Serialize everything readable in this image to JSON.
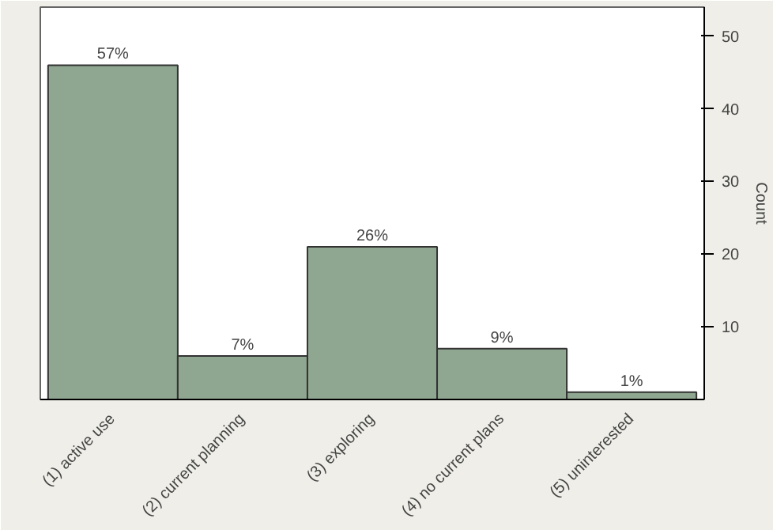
{
  "chart_data": {
    "type": "bar",
    "ylabel": "Count",
    "categories": [
      "(1) active use",
      "(2) current planning",
      "(3) exploring",
      "(4) no current plans",
      "(5) uninterested"
    ],
    "values": [
      46,
      6,
      21,
      7,
      1
    ],
    "annotations": [
      {
        "text": "57%",
        "x": "(1) active use",
        "y": 46
      },
      {
        "text": "7%",
        "x": "(2) current planning",
        "y": 6
      },
      {
        "text": "26%",
        "x": "(3) exploring",
        "y": 21
      },
      {
        "text": "9%",
        "x": "(4) no current plans",
        "y": 7
      },
      {
        "text": "1%",
        "x": "(5) uninterested",
        "y": 1
      }
    ],
    "color": "#8fa690",
    "ylim": [
      0,
      54
    ],
    "yticks": [
      10,
      20,
      30,
      40,
      50
    ],
    "grid": false
  }
}
